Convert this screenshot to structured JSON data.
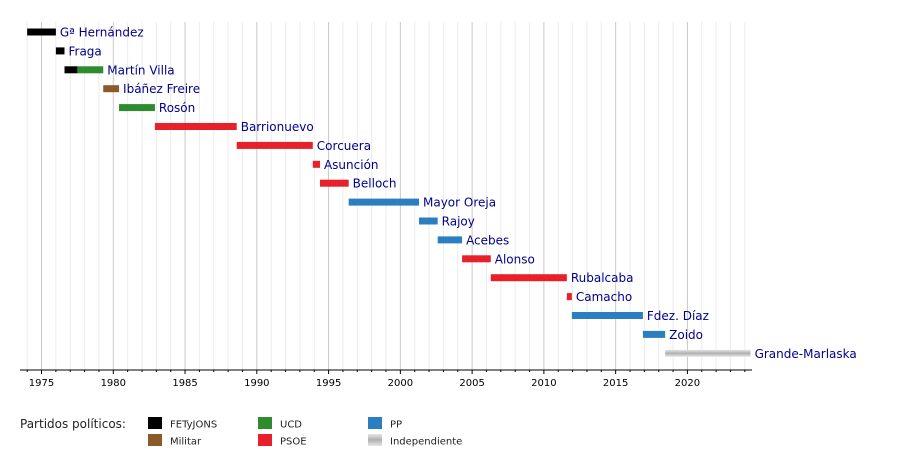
{
  "chart_data": {
    "type": "bar",
    "subtype": "horizontal-timeline",
    "xlim": [
      1973.5,
      2024.5
    ],
    "x_ticks": [
      1975,
      1980,
      1985,
      1990,
      1995,
      2000,
      2005,
      2010,
      2015,
      2020
    ],
    "grid": true,
    "legend_title": "Partidos políticos:",
    "parties": [
      {
        "name": "FETyJONS",
        "color": "#000000"
      },
      {
        "name": "Militar",
        "color": "#8b5a2b"
      },
      {
        "name": "UCD",
        "color": "#2e8b2e"
      },
      {
        "name": "PSOE",
        "color": "#e8202a"
      },
      {
        "name": "PP",
        "color": "#2b7fc1"
      },
      {
        "name": "Independiente",
        "color": "#bbbbbb"
      }
    ],
    "ministers": [
      {
        "name": "Gª Hernández",
        "periods": [
          {
            "start": 1974.0,
            "end": 1976.0,
            "party": "FETyJONS"
          }
        ]
      },
      {
        "name": "Fraga",
        "periods": [
          {
            "start": 1976.0,
            "end": 1976.6,
            "party": "FETyJONS"
          }
        ]
      },
      {
        "name": "Martín Villa",
        "periods": [
          {
            "start": 1976.6,
            "end": 1977.5,
            "party": "FETyJONS"
          },
          {
            "start": 1977.5,
            "end": 1979.3,
            "party": "UCD"
          }
        ]
      },
      {
        "name": "Ibáñez Freire",
        "periods": [
          {
            "start": 1979.3,
            "end": 1980.4,
            "party": "Militar"
          }
        ]
      },
      {
        "name": "Rosón",
        "periods": [
          {
            "start": 1980.4,
            "end": 1982.9,
            "party": "UCD"
          }
        ]
      },
      {
        "name": "Barrionuevo",
        "periods": [
          {
            "start": 1982.9,
            "end": 1988.6,
            "party": "PSOE"
          }
        ]
      },
      {
        "name": "Corcuera",
        "periods": [
          {
            "start": 1988.6,
            "end": 1993.9,
            "party": "PSOE"
          }
        ]
      },
      {
        "name": "Asunción",
        "periods": [
          {
            "start": 1993.9,
            "end": 1994.4,
            "party": "PSOE"
          }
        ]
      },
      {
        "name": "Belloch",
        "periods": [
          {
            "start": 1994.4,
            "end": 1996.4,
            "party": "PSOE"
          }
        ]
      },
      {
        "name": "Mayor Oreja",
        "periods": [
          {
            "start": 1996.4,
            "end": 2001.3,
            "party": "PP"
          }
        ]
      },
      {
        "name": "Rajoy",
        "periods": [
          {
            "start": 2001.3,
            "end": 2002.6,
            "party": "PP"
          }
        ]
      },
      {
        "name": "Acebes",
        "periods": [
          {
            "start": 2002.6,
            "end": 2004.3,
            "party": "PP"
          }
        ]
      },
      {
        "name": "Alonso",
        "periods": [
          {
            "start": 2004.3,
            "end": 2006.3,
            "party": "PSOE"
          }
        ]
      },
      {
        "name": "Rubalcaba",
        "periods": [
          {
            "start": 2006.3,
            "end": 2011.6,
            "party": "PSOE"
          }
        ]
      },
      {
        "name": "Camacho",
        "periods": [
          {
            "start": 2011.6,
            "end": 2011.95,
            "party": "PSOE"
          }
        ]
      },
      {
        "name": "Fdez. Díaz",
        "periods": [
          {
            "start": 2011.95,
            "end": 2016.9,
            "party": "PP"
          }
        ]
      },
      {
        "name": "Zoido",
        "periods": [
          {
            "start": 2016.9,
            "end": 2018.45,
            "party": "PP"
          }
        ]
      },
      {
        "name": "Grande-Marlaska",
        "periods": [
          {
            "start": 2018.45,
            "end": 2024.4,
            "party": "Independiente"
          }
        ]
      }
    ]
  }
}
